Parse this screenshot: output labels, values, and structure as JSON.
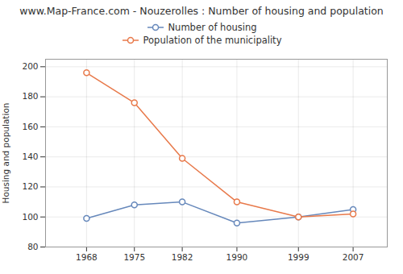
{
  "chart_data": {
    "type": "line",
    "title": "www.Map-France.com - Nouzerolles : Number of housing and population",
    "ylabel": "Housing and population",
    "x": [
      1968,
      1975,
      1982,
      1990,
      1999,
      2007
    ],
    "series": [
      {
        "name": "Number of housing",
        "color": "#6688bb",
        "marker": "circle",
        "values": [
          99,
          108,
          110,
          96,
          100,
          105
        ]
      },
      {
        "name": "Population of the municipality",
        "color": "#e8794a",
        "marker": "circle",
        "values": [
          196,
          176,
          139,
          110,
          100,
          102
        ]
      }
    ],
    "xlim": [
      1962,
      2012
    ],
    "xticks": [
      1968,
      1975,
      1982,
      1990,
      1999,
      2007
    ],
    "ylim": [
      80,
      205
    ],
    "yticks": [
      80,
      100,
      120,
      140,
      160,
      180,
      200
    ],
    "grid": true,
    "legend": "top"
  }
}
